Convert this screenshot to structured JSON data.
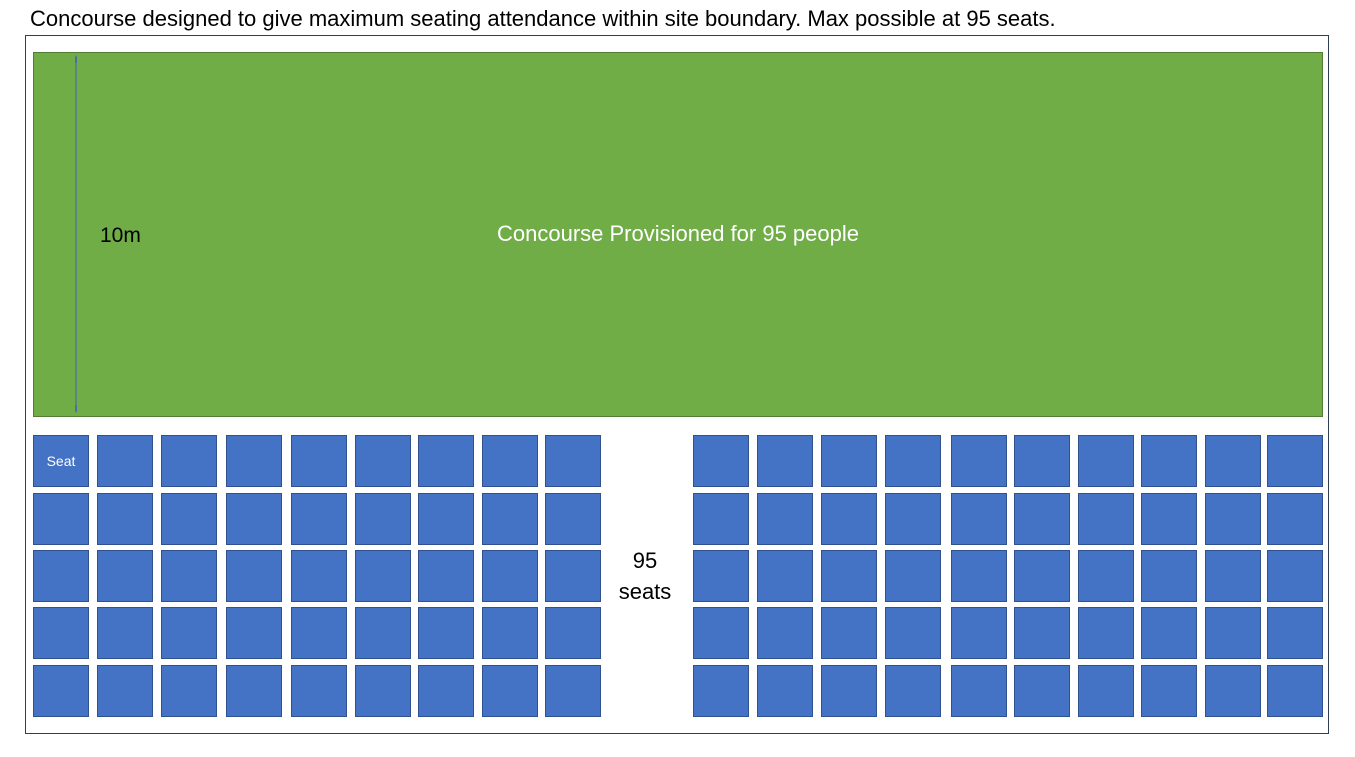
{
  "caption": "Concourse designed to give maximum seating attendance within site boundary. Max possible at 95 seats.",
  "concourse": {
    "label": "Concourse Provisioned for 95 people",
    "dimension_label": "10m"
  },
  "seating": {
    "seat_label": "Seat",
    "count_number": "95",
    "count_unit": "seats",
    "rows": 5,
    "left_block_columns": 9,
    "right_block_columns": 10
  },
  "colors": {
    "concourse_fill": "#70ad47",
    "seat_fill": "#4472c4",
    "dimension_arrow": "#4a6fa5"
  }
}
